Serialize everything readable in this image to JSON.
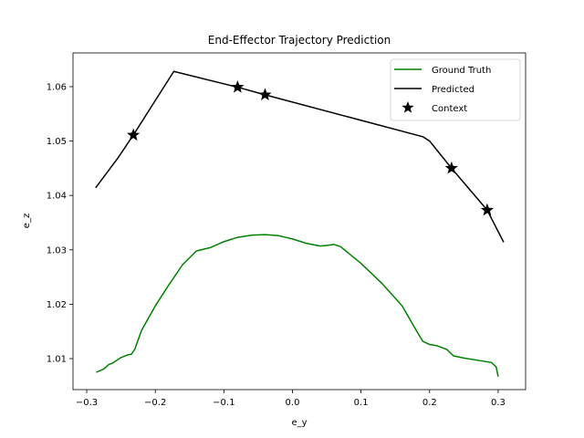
{
  "chart_data": {
    "type": "line",
    "title": "End-Effector Trajectory Prediction",
    "xlabel": "e_y",
    "ylabel": "e_z",
    "xlim": [
      -0.32,
      0.34
    ],
    "ylim": [
      1.0043,
      1.0662
    ],
    "xticks": [
      -0.3,
      -0.2,
      -0.1,
      0.0,
      0.1,
      0.2,
      0.3
    ],
    "xtick_labels": [
      "−0.3",
      "−0.2",
      "−0.1",
      "0.0",
      "0.1",
      "0.2",
      "0.3"
    ],
    "yticks": [
      1.01,
      1.02,
      1.03,
      1.04,
      1.05,
      1.06
    ],
    "ytick_labels": [
      "1.01",
      "1.02",
      "1.03",
      "1.04",
      "1.05",
      "1.06"
    ],
    "grid": false,
    "legend_position": "upper right",
    "series": [
      {
        "name": "Ground Truth",
        "style": "line",
        "color": "#008000",
        "x": [
          -0.286,
          -0.275,
          -0.268,
          -0.262,
          -0.25,
          -0.24,
          -0.235,
          -0.23,
          -0.22,
          -0.2,
          -0.18,
          -0.16,
          -0.14,
          -0.12,
          -0.1,
          -0.08,
          -0.06,
          -0.04,
          -0.02,
          0.0,
          0.02,
          0.04,
          0.05,
          0.06,
          0.07,
          0.1,
          0.13,
          0.16,
          0.18,
          0.19,
          0.2,
          0.21,
          0.225,
          0.235,
          0.25,
          0.27,
          0.29,
          0.297,
          0.3
        ],
        "y": [
          1.0075,
          1.0081,
          1.0089,
          1.0092,
          1.0102,
          1.0107,
          1.0108,
          1.0117,
          1.0152,
          1.0197,
          1.0236,
          1.0273,
          1.0298,
          1.0304,
          1.0315,
          1.0323,
          1.0327,
          1.0328,
          1.0326,
          1.032,
          1.0312,
          1.0307,
          1.0308,
          1.031,
          1.0306,
          1.0275,
          1.0239,
          1.0197,
          1.0153,
          1.0132,
          1.0126,
          1.0124,
          1.0117,
          1.0105,
          1.0101,
          1.0097,
          1.0093,
          1.0085,
          1.0067
        ]
      },
      {
        "name": "Predicted",
        "style": "line",
        "color": "#000000",
        "x": [
          -0.287,
          -0.255,
          -0.232,
          -0.173,
          -0.08,
          -0.04,
          0.19,
          0.2,
          0.232,
          0.284,
          0.308
        ],
        "y": [
          1.0414,
          1.0468,
          1.0511,
          1.0628,
          1.0599,
          1.0585,
          1.0508,
          1.05,
          1.045,
          1.0373,
          1.0314
        ]
      },
      {
        "name": "Context",
        "style": "marker",
        "marker": "star",
        "color": "#000000",
        "x": [
          -0.232,
          -0.08,
          -0.04,
          0.232,
          0.284
        ],
        "y": [
          1.0511,
          1.0599,
          1.0585,
          1.045,
          1.0373
        ]
      }
    ]
  }
}
